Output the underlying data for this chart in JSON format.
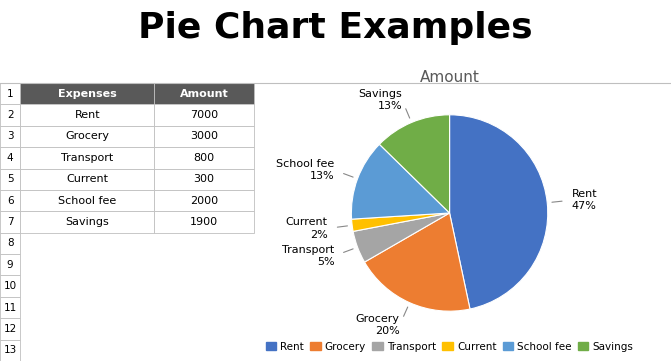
{
  "title": "Pie Chart Examples",
  "chart_title": "Amount",
  "categories": [
    "Rent",
    "Grocery",
    "Transport",
    "Current",
    "School fee",
    "Savings"
  ],
  "values": [
    7000,
    3000,
    800,
    300,
    2000,
    1900
  ],
  "colors": [
    "#4472C4",
    "#ED7D31",
    "#A5A5A5",
    "#FFC000",
    "#5B9BD5",
    "#70AD47"
  ],
  "table_headers": [
    "Expenses",
    "Amount"
  ],
  "table_rows": [
    [
      "Rent",
      "7000"
    ],
    [
      "Grocery",
      "3000"
    ],
    [
      "Transport",
      "800"
    ],
    [
      "Current",
      "300"
    ],
    [
      "School fee",
      "2000"
    ],
    [
      "Savings",
      "1900"
    ]
  ],
  "num_rows": 13,
  "header_bg": "#595959",
  "header_fg": "#FFFFFF",
  "grid_line_color": "#BFBFBF",
  "table_bg": "#FFFFFF",
  "fig_bg": "#FFFFFF",
  "title_fontsize": 26,
  "chart_title_fontsize": 11,
  "label_fontsize": 8,
  "legend_fontsize": 7.5,
  "startangle": 90
}
